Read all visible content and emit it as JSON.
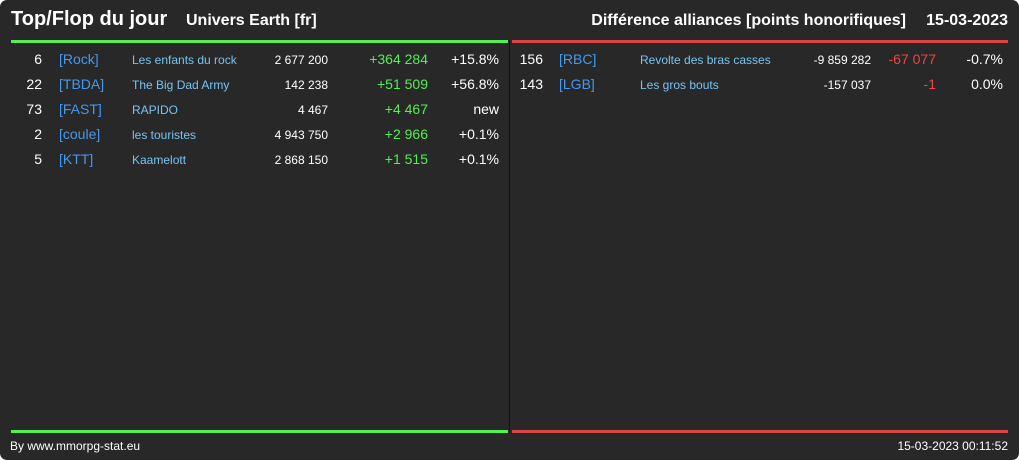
{
  "header": {
    "title": "Top/Flop du jour",
    "universe": "Univers Earth [fr]",
    "subtitle": "Différence alliances [points honorifiques]",
    "date": "15-03-2023"
  },
  "colors": {
    "background": "#282828",
    "top_bar": "#55ee55",
    "flop_bar": "#dd4444",
    "tag": "#4499ee",
    "name": "#77c4f2",
    "positive": "#55ee55",
    "negative": "#ee4444"
  },
  "top": [
    {
      "rank": "6",
      "tag": "[Rock]",
      "name": "Les enfants du rock",
      "points": "2 677 200",
      "diff": "+364 284",
      "pct": "+15.8%"
    },
    {
      "rank": "22",
      "tag": "[TBDA]",
      "name": "The Big Dad Army",
      "points": "142 238",
      "diff": "+51 509",
      "pct": "+56.8%"
    },
    {
      "rank": "73",
      "tag": "[FAST]",
      "name": "RAPIDO",
      "points": "4 467",
      "diff": "+4 467",
      "pct": "new"
    },
    {
      "rank": "2",
      "tag": "[coule]",
      "name": "les touristes",
      "points": "4 943 750",
      "diff": "+2 966",
      "pct": "+0.1%"
    },
    {
      "rank": "5",
      "tag": "[KTT]",
      "name": "Kaamelott",
      "points": "2 868 150",
      "diff": "+1 515",
      "pct": "+0.1%"
    }
  ],
  "flop": [
    {
      "rank": "156",
      "tag": "[RBC]",
      "name": "Revolte des bras casses",
      "points": "-9 859 282",
      "diff": "-67 077",
      "pct": "-0.7%"
    },
    {
      "rank": "143",
      "tag": "[LGB]",
      "name": "Les gros bouts",
      "points": "-157 037",
      "diff": "-1",
      "pct": "0.0%"
    }
  ],
  "footer": {
    "credit": "By www.mmorpg-stat.eu",
    "timestamp": "15-03-2023 00:11:52"
  }
}
